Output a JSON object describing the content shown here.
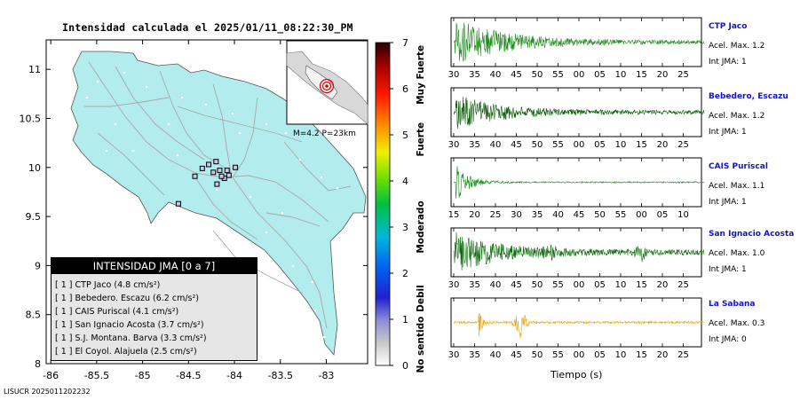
{
  "header": {
    "title": "Intensidad calculada el 2025/01/11_08:22:30_PM"
  },
  "footer": {
    "credit": "LISUCR 2025011202232"
  },
  "map": {
    "x_ticks": [
      "-86",
      "-85.5",
      "-85",
      "-84.5",
      "-84",
      "-83.5",
      "-83"
    ],
    "y_ticks": [
      "11",
      "10.5",
      "10",
      "9.5",
      "9",
      "8.5",
      "8"
    ],
    "inset_label": "M=4.2 P=23km",
    "colors": {
      "land": "#b2ecec",
      "roads": "#a8a8a8",
      "border": "#555555",
      "marker": "#c8c8e8"
    },
    "stations": [
      {
        "lon": -84.23,
        "lat": 9.95
      },
      {
        "lon": -84.16,
        "lat": 9.97
      },
      {
        "lon": -84.06,
        "lat": 9.92
      },
      {
        "lon": -83.99,
        "lat": 10.0
      },
      {
        "lon": -84.11,
        "lat": 9.89
      },
      {
        "lon": -84.28,
        "lat": 10.03
      },
      {
        "lon": -84.43,
        "lat": 9.91
      },
      {
        "lon": -84.19,
        "lat": 9.83
      },
      {
        "lon": -84.14,
        "lat": 9.91
      },
      {
        "lon": -84.08,
        "lat": 9.97
      },
      {
        "lon": -84.61,
        "lat": 9.63
      },
      {
        "lon": -84.2,
        "lat": 10.06
      },
      {
        "lon": -84.35,
        "lat": 9.99
      }
    ]
  },
  "colorbar": {
    "ticks": [
      "0",
      "1",
      "2",
      "3",
      "4",
      "5",
      "6",
      "7"
    ],
    "zones": [
      "No sentido",
      "Debil",
      "Moderado",
      "Fuerte",
      "Muy Fuerte"
    ]
  },
  "legend": {
    "title": "INTENSIDAD JMA [0 a 7]",
    "rows": [
      "[ 1 ] CTP Jaco (4.8 cm/s²)",
      "[ 1 ] Bebedero. Escazu (6.2 cm/s²)",
      "[ 1 ] CAIS Puriscal (4.1 cm/s²)",
      "[ 1 ] San Ignacio Acosta (3.7 cm/s²)",
      "[ 1 ] S.J. Montana. Barva (3.3 cm/s²)",
      "[ 1 ] El Coyol. Alajuela (2.5 cm/s²)"
    ]
  },
  "traces": [
    {
      "name": "CTP Jaco",
      "acel": "Acel. Max. 1.2",
      "jma": "Int JMA: 1",
      "color": "#1e8a1e",
      "ticks": [
        "30",
        "35",
        "40",
        "45",
        "50",
        "55",
        "00",
        "05",
        "10",
        "15",
        "20",
        "25"
      ],
      "x_start_s": 30,
      "onset_s": 30.3,
      "peak_amp": 1.0,
      "decay_s": 12,
      "noise": 0.08,
      "bursts": []
    },
    {
      "name": "Bebedero, Escazu",
      "acel": "Acel. Max. 1.2",
      "jma": "Int JMA: 1",
      "color": "#0a5a0a",
      "ticks": [
        "30",
        "35",
        "40",
        "45",
        "50",
        "55",
        "00",
        "05",
        "10",
        "15",
        "20",
        "25"
      ],
      "x_start_s": 30,
      "onset_s": 30.5,
      "peak_amp": 0.75,
      "decay_s": 10,
      "noise": 0.09,
      "bursts": []
    },
    {
      "name": "CAIS Puriscal",
      "acel": "Acel. Max. 1.1",
      "jma": "Int JMA: 1",
      "color": "#1e8a1e",
      "ticks": [
        "15",
        "20",
        "25",
        "30",
        "35",
        "40",
        "45",
        "50",
        "55",
        "00",
        "05",
        "10"
      ],
      "x_start_s": 15,
      "onset_s": 15.5,
      "peak_amp": 0.85,
      "decay_s": 3,
      "noise": 0.03,
      "bursts": []
    },
    {
      "name": "San Ignacio Acosta",
      "acel": "Acel. Max. 1.0",
      "jma": "Int JMA: 1",
      "color": "#0a6a0a",
      "ticks": [
        "30",
        "35",
        "40",
        "45",
        "50",
        "55",
        "00",
        "05",
        "10",
        "15",
        "20",
        "25"
      ],
      "x_start_s": 30,
      "onset_s": 30.2,
      "peak_amp": 0.8,
      "decay_s": 11,
      "noise": 0.12,
      "bursts": [
        [
          53,
          0.3
        ],
        [
          75,
          0.35
        ]
      ]
    },
    {
      "name": "La Sabana",
      "acel": "Acel. Max. 0.3",
      "jma": "Int JMA: 0",
      "color": "#f0a000",
      "ticks": [
        "30",
        "35",
        "40",
        "45",
        "50",
        "55",
        "00",
        "05",
        "10",
        "15",
        "20",
        "25"
      ],
      "x_start_s": 30,
      "onset_s": 36,
      "peak_amp": 0.95,
      "decay_s": 0.6,
      "noise": 0.05,
      "bursts": [
        [
          46,
          0.8
        ]
      ]
    }
  ],
  "x_axis_label": "Tiempo (s)"
}
